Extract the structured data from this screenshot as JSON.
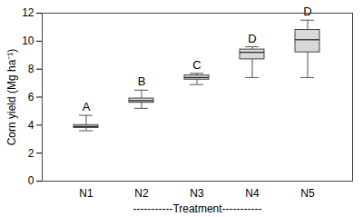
{
  "chart_data": {
    "type": "box",
    "x_label": "-----------Treatment-----------",
    "y_label": "Corn yield (Mg ha⁻¹)",
    "categories": [
      "N1",
      "N2",
      "N3",
      "N4",
      "N5"
    ],
    "min": [
      3.6,
      5.2,
      6.9,
      7.4,
      7.4
    ],
    "q1": [
      3.8,
      5.6,
      7.25,
      8.7,
      9.2
    ],
    "median": [
      3.9,
      5.75,
      7.4,
      9.2,
      10.1
    ],
    "q3": [
      4.0,
      5.9,
      7.55,
      9.4,
      10.8
    ],
    "max": [
      4.7,
      6.5,
      7.7,
      9.6,
      11.5
    ],
    "group_labels": [
      "A",
      "B",
      "C",
      "D",
      "D"
    ],
    "color": "#d9d9d9",
    "ylim": [
      0,
      12
    ],
    "yticks": [
      0,
      2,
      4,
      6,
      8,
      10,
      12
    ],
    "grid": false
  }
}
